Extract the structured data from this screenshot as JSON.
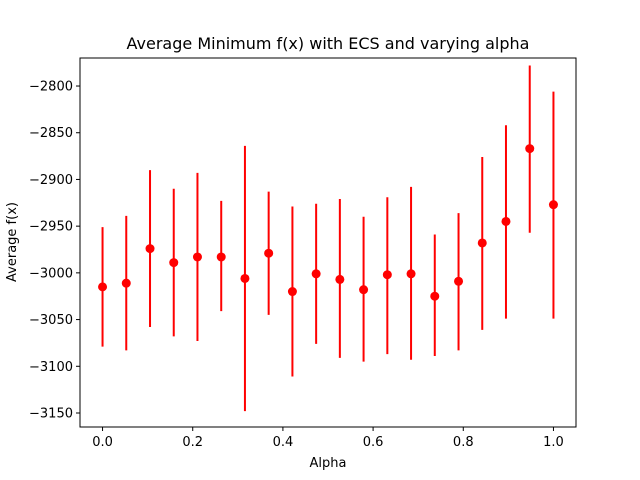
{
  "chart_data": {
    "type": "scatter",
    "title": "Average Minimum f(x) with ECS and varying alpha",
    "xlabel": "Alpha",
    "ylabel": "Average f(x)",
    "xlim": [
      -0.05,
      1.05
    ],
    "ylim": [
      -3165,
      -2770
    ],
    "xticks": [
      0.0,
      0.2,
      0.4,
      0.6,
      0.8,
      1.0
    ],
    "xtick_labels": [
      "0.0",
      "0.2",
      "0.4",
      "0.6",
      "0.8",
      "1.0"
    ],
    "yticks": [
      -2800,
      -2850,
      -2900,
      -2950,
      -3000,
      -3050,
      -3100,
      -3150
    ],
    "ytick_labels": [
      "−2800",
      "−2850",
      "−2900",
      "−2950",
      "−3000",
      "−3050",
      "−3100",
      "−3150"
    ],
    "grid": false,
    "color": "#ff0000",
    "series": [
      {
        "x": [
          0.0,
          0.0526,
          0.1053,
          0.1579,
          0.2105,
          0.2632,
          0.3158,
          0.3684,
          0.4211,
          0.4737,
          0.5263,
          0.5789,
          0.6316,
          0.6842,
          0.7368,
          0.7895,
          0.8421,
          0.8947,
          0.9474,
          1.0
        ],
        "y": [
          -3015,
          -3011,
          -2974,
          -2989,
          -2983,
          -2983,
          -3006,
          -2979,
          -3020,
          -3001,
          -3007,
          -3018,
          -3002,
          -3001,
          -3025,
          -3009,
          -2968,
          -2945,
          -2867,
          -2927
        ],
        "err_low": [
          -3079,
          -3083,
          -3058,
          -3068,
          -3073,
          -3041,
          -3148,
          -3045,
          -3111,
          -3076,
          -3091,
          -3095,
          -3087,
          -3093,
          -3089,
          -3083,
          -3061,
          -3049,
          -2957,
          -3049
        ],
        "err_high": [
          -2951,
          -2939,
          -2890,
          -2910,
          -2893,
          -2923,
          -2864,
          -2913,
          -2929,
          -2926,
          -2921,
          -2940,
          -2919,
          -2908,
          -2959,
          -2936,
          -2876,
          -2842,
          -2778,
          -2806
        ]
      }
    ]
  }
}
